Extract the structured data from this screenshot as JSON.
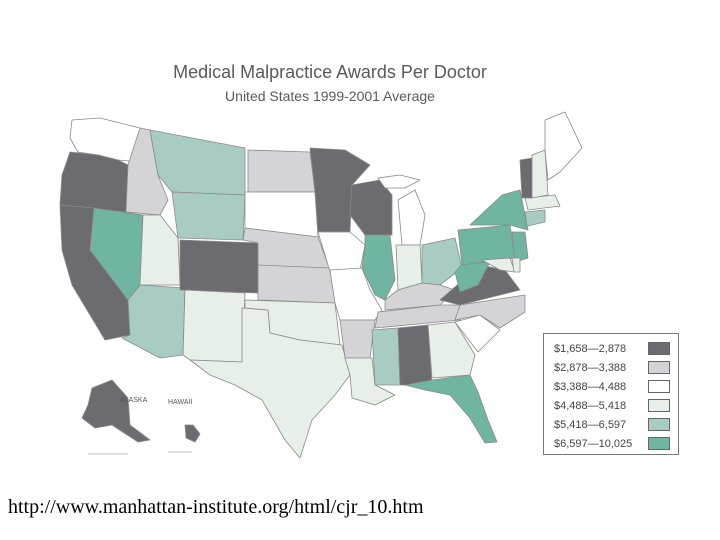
{
  "title": "Medical Malpractice Awards Per Doctor",
  "subtitle": "United States 1999-2001 Average",
  "caption": "http://www.manhattan-institute.org/html/cjr_10.htm",
  "inset_labels": {
    "alaska": "ALASKA",
    "hawaii": "HAWAII"
  },
  "colors": {
    "c1": "#6b6b70",
    "c2": "#d4d4d6",
    "c3": "#ffffff",
    "c4": "#e8efe9",
    "c5": "#a9ccc2",
    "c6": "#6fb5a2"
  },
  "legend": [
    {
      "label": "$1,658—2,878",
      "color": "#6b6b70"
    },
    {
      "label": "$2,878—3,388",
      "color": "#d4d4d6"
    },
    {
      "label": "$3,388—4,488",
      "color": "#ffffff"
    },
    {
      "label": "$4,488—5,418",
      "color": "#e8efe9"
    },
    {
      "label": "$5,418—6,597",
      "color": "#a9ccc2"
    },
    {
      "label": "$6,597—10,025",
      "color": "#6fb5a2"
    }
  ],
  "states": [
    {
      "name": "Washington",
      "cls": "c3"
    },
    {
      "name": "Oregon",
      "cls": "c1"
    },
    {
      "name": "California",
      "cls": "c1"
    },
    {
      "name": "Nevada",
      "cls": "c6"
    },
    {
      "name": "Idaho",
      "cls": "c2"
    },
    {
      "name": "Montana",
      "cls": "c5"
    },
    {
      "name": "Wyoming",
      "cls": "c5"
    },
    {
      "name": "Utah",
      "cls": "c4"
    },
    {
      "name": "Arizona",
      "cls": "c5"
    },
    {
      "name": "Colorado",
      "cls": "c1"
    },
    {
      "name": "New Mexico",
      "cls": "c4"
    },
    {
      "name": "North Dakota",
      "cls": "c2"
    },
    {
      "name": "South Dakota",
      "cls": "c3"
    },
    {
      "name": "Nebraska",
      "cls": "c2"
    },
    {
      "name": "Kansas",
      "cls": "c2"
    },
    {
      "name": "Oklahoma",
      "cls": "c4"
    },
    {
      "name": "Texas",
      "cls": "c4"
    },
    {
      "name": "Minnesota",
      "cls": "c1"
    },
    {
      "name": "Iowa",
      "cls": "c3"
    },
    {
      "name": "Missouri",
      "cls": "c3"
    },
    {
      "name": "Arkansas",
      "cls": "c2"
    },
    {
      "name": "Louisiana",
      "cls": "c4"
    },
    {
      "name": "Wisconsin",
      "cls": "c1"
    },
    {
      "name": "Illinois",
      "cls": "c6"
    },
    {
      "name": "Michigan",
      "cls": "c3"
    },
    {
      "name": "Indiana",
      "cls": "c4"
    },
    {
      "name": "Ohio",
      "cls": "c5"
    },
    {
      "name": "Kentucky",
      "cls": "c2"
    },
    {
      "name": "Tennessee",
      "cls": "c2"
    },
    {
      "name": "Mississippi",
      "cls": "c5"
    },
    {
      "name": "Alabama",
      "cls": "c1"
    },
    {
      "name": "Georgia",
      "cls": "c4"
    },
    {
      "name": "Florida",
      "cls": "c6"
    },
    {
      "name": "South Carolina",
      "cls": "c3"
    },
    {
      "name": "North Carolina",
      "cls": "c2"
    },
    {
      "name": "Virginia",
      "cls": "c1"
    },
    {
      "name": "West Virginia",
      "cls": "c6"
    },
    {
      "name": "Pennsylvania",
      "cls": "c6"
    },
    {
      "name": "New York",
      "cls": "c6"
    },
    {
      "name": "New Jersey",
      "cls": "c6"
    },
    {
      "name": "Maryland",
      "cls": "c4"
    },
    {
      "name": "Delaware",
      "cls": "c4"
    },
    {
      "name": "Connecticut",
      "cls": "c5"
    },
    {
      "name": "Massachusetts",
      "cls": "c4"
    },
    {
      "name": "Vermont",
      "cls": "c1"
    },
    {
      "name": "New Hampshire",
      "cls": "c4"
    },
    {
      "name": "Maine",
      "cls": "c3"
    },
    {
      "name": "Alaska",
      "cls": "c1"
    },
    {
      "name": "Hawaii",
      "cls": "c1"
    }
  ]
}
